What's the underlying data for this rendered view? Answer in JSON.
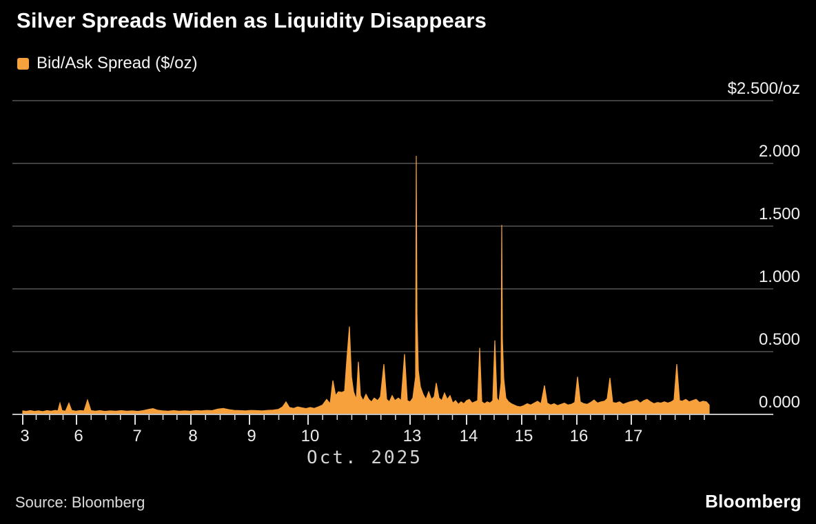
{
  "title": "Silver Spreads Widen as Liquidity Disappears",
  "legend": {
    "label": "Bid/Ask Spread ($/oz)"
  },
  "source": "Source: Bloomberg",
  "brand": "Bloomberg",
  "colors": {
    "background": "#000000",
    "accent": "#F6A13B",
    "gridline": "#565656",
    "baseline": "#C2C2C2",
    "tick": "#E0E0E0",
    "y_label": "#F0F0F0",
    "x_label": "#EDEDED",
    "caption": "#D6D6D6"
  },
  "chart_data": {
    "type": "area",
    "title": "Silver Spreads Widen as Liquidity Disappears",
    "series_name": "Bid/Ask Spread ($/oz)",
    "xlabel": "Oct. 2025",
    "ylabel": "$/oz",
    "ylim": [
      0,
      2.5
    ],
    "grid": "horizontal",
    "legend_position": "top-left",
    "y_axis": {
      "side": "right",
      "ticks": [
        {
          "label": "$2.500/oz",
          "value": 2.5
        },
        {
          "label": "2.000",
          "value": 2.0
        },
        {
          "label": "1.500",
          "value": 1.5
        },
        {
          "label": "1.000",
          "value": 1.0
        },
        {
          "label": "0.500",
          "value": 0.5
        },
        {
          "label": "0.000",
          "value": 0.0
        }
      ]
    },
    "x_axis": {
      "caption": "Oct. 2025",
      "unit_note": "x = position along time axis (Oct 3 - Oct 17, 2025, non-trading gaps compressed)",
      "ticks": [
        {
          "label": "3",
          "pos": 13
        },
        {
          "label": "6",
          "pos": 91
        },
        {
          "label": "7",
          "pos": 176
        },
        {
          "label": "8",
          "pos": 257
        },
        {
          "label": "9",
          "pos": 342
        },
        {
          "label": "10",
          "pos": 427
        },
        {
          "label": "13",
          "pos": 575
        },
        {
          "label": "14",
          "pos": 657
        },
        {
          "label": "15",
          "pos": 737
        },
        {
          "label": "16",
          "pos": 817
        },
        {
          "label": "17",
          "pos": 896
        }
      ],
      "minor_tick_spacing": 21.2,
      "data_end": 1009
    },
    "points": [
      [
        13,
        0.028
      ],
      [
        18,
        0.024
      ],
      [
        24,
        0.03
      ],
      [
        30,
        0.024
      ],
      [
        36,
        0.028
      ],
      [
        42,
        0.022
      ],
      [
        48,
        0.03
      ],
      [
        54,
        0.026
      ],
      [
        60,
        0.032
      ],
      [
        64,
        0.028
      ],
      [
        67,
        0.09
      ],
      [
        70,
        0.03
      ],
      [
        75,
        0.026
      ],
      [
        80,
        0.09
      ],
      [
        84,
        0.032
      ],
      [
        90,
        0.026
      ],
      [
        96,
        0.03
      ],
      [
        102,
        0.028
      ],
      [
        107,
        0.115
      ],
      [
        112,
        0.03
      ],
      [
        118,
        0.026
      ],
      [
        125,
        0.03
      ],
      [
        132,
        0.024
      ],
      [
        140,
        0.028
      ],
      [
        148,
        0.026
      ],
      [
        156,
        0.03
      ],
      [
        164,
        0.026
      ],
      [
        172,
        0.028
      ],
      [
        180,
        0.024
      ],
      [
        188,
        0.03
      ],
      [
        196,
        0.04
      ],
      [
        202,
        0.046
      ],
      [
        208,
        0.034
      ],
      [
        216,
        0.028
      ],
      [
        224,
        0.026
      ],
      [
        232,
        0.03
      ],
      [
        240,
        0.026
      ],
      [
        248,
        0.028
      ],
      [
        256,
        0.026
      ],
      [
        264,
        0.03
      ],
      [
        272,
        0.028
      ],
      [
        280,
        0.032
      ],
      [
        288,
        0.03
      ],
      [
        296,
        0.042
      ],
      [
        304,
        0.048
      ],
      [
        312,
        0.038
      ],
      [
        320,
        0.032
      ],
      [
        328,
        0.03
      ],
      [
        336,
        0.028
      ],
      [
        344,
        0.032
      ],
      [
        352,
        0.03
      ],
      [
        360,
        0.028
      ],
      [
        368,
        0.032
      ],
      [
        376,
        0.034
      ],
      [
        384,
        0.04
      ],
      [
        390,
        0.06
      ],
      [
        395,
        0.1
      ],
      [
        400,
        0.055
      ],
      [
        406,
        0.048
      ],
      [
        412,
        0.06
      ],
      [
        418,
        0.052
      ],
      [
        424,
        0.046
      ],
      [
        430,
        0.055
      ],
      [
        436,
        0.048
      ],
      [
        442,
        0.06
      ],
      [
        448,
        0.075
      ],
      [
        454,
        0.12
      ],
      [
        459,
        0.085
      ],
      [
        463,
        0.27
      ],
      [
        467,
        0.15
      ],
      [
        471,
        0.18
      ],
      [
        476,
        0.175
      ],
      [
        480,
        0.185
      ],
      [
        483,
        0.42
      ],
      [
        487,
        0.7
      ],
      [
        490,
        0.3
      ],
      [
        493,
        0.18
      ],
      [
        497,
        0.12
      ],
      [
        500,
        0.42
      ],
      [
        503,
        0.15
      ],
      [
        507,
        0.11
      ],
      [
        511,
        0.16
      ],
      [
        515,
        0.12
      ],
      [
        519,
        0.1
      ],
      [
        523,
        0.13
      ],
      [
        528,
        0.11
      ],
      [
        532,
        0.14
      ],
      [
        537,
        0.4
      ],
      [
        541,
        0.12
      ],
      [
        545,
        0.1
      ],
      [
        549,
        0.15
      ],
      [
        553,
        0.11
      ],
      [
        558,
        0.13
      ],
      [
        562,
        0.11
      ],
      [
        567,
        0.48
      ],
      [
        571,
        0.11
      ],
      [
        575,
        0.1
      ],
      [
        579,
        0.13
      ],
      [
        583,
        0.3
      ],
      [
        584,
        2.06
      ],
      [
        585,
        0.8
      ],
      [
        587,
        0.35
      ],
      [
        590,
        0.22
      ],
      [
        594,
        0.16
      ],
      [
        598,
        0.12
      ],
      [
        602,
        0.18
      ],
      [
        606,
        0.12
      ],
      [
        610,
        0.14
      ],
      [
        613,
        0.25
      ],
      [
        617,
        0.13
      ],
      [
        621,
        0.11
      ],
      [
        625,
        0.17
      ],
      [
        629,
        0.12
      ],
      [
        633,
        0.15
      ],
      [
        637,
        0.09
      ],
      [
        641,
        0.11
      ],
      [
        645,
        0.08
      ],
      [
        649,
        0.1
      ],
      [
        653,
        0.085
      ],
      [
        657,
        0.11
      ],
      [
        661,
        0.12
      ],
      [
        665,
        0.09
      ],
      [
        669,
        0.1
      ],
      [
        673,
        0.11
      ],
      [
        676,
        0.53
      ],
      [
        679,
        0.1
      ],
      [
        683,
        0.085
      ],
      [
        687,
        0.1
      ],
      [
        691,
        0.09
      ],
      [
        695,
        0.11
      ],
      [
        698,
        0.59
      ],
      [
        701,
        0.13
      ],
      [
        704,
        0.1
      ],
      [
        707,
        0.25
      ],
      [
        708,
        1.51
      ],
      [
        709,
        0.6
      ],
      [
        711,
        0.28
      ],
      [
        714,
        0.13
      ],
      [
        718,
        0.1
      ],
      [
        722,
        0.085
      ],
      [
        726,
        0.075
      ],
      [
        730,
        0.065
      ],
      [
        735,
        0.06
      ],
      [
        740,
        0.07
      ],
      [
        745,
        0.085
      ],
      [
        750,
        0.075
      ],
      [
        755,
        0.09
      ],
      [
        760,
        0.105
      ],
      [
        765,
        0.085
      ],
      [
        770,
        0.23
      ],
      [
        774,
        0.09
      ],
      [
        779,
        0.075
      ],
      [
        784,
        0.085
      ],
      [
        789,
        0.07
      ],
      [
        794,
        0.08
      ],
      [
        799,
        0.09
      ],
      [
        804,
        0.075
      ],
      [
        809,
        0.08
      ],
      [
        814,
        0.095
      ],
      [
        818,
        0.3
      ],
      [
        822,
        0.1
      ],
      [
        827,
        0.085
      ],
      [
        832,
        0.08
      ],
      [
        837,
        0.095
      ],
      [
        842,
        0.115
      ],
      [
        847,
        0.09
      ],
      [
        852,
        0.1
      ],
      [
        857,
        0.105
      ],
      [
        861,
        0.125
      ],
      [
        865,
        0.29
      ],
      [
        869,
        0.095
      ],
      [
        874,
        0.09
      ],
      [
        879,
        0.1
      ],
      [
        884,
        0.08
      ],
      [
        889,
        0.09
      ],
      [
        894,
        0.1
      ],
      [
        899,
        0.105
      ],
      [
        904,
        0.115
      ],
      [
        909,
        0.09
      ],
      [
        914,
        0.11
      ],
      [
        919,
        0.12
      ],
      [
        924,
        0.1
      ],
      [
        929,
        0.085
      ],
      [
        934,
        0.095
      ],
      [
        939,
        0.09
      ],
      [
        944,
        0.1
      ],
      [
        949,
        0.09
      ],
      [
        954,
        0.1
      ],
      [
        958,
        0.115
      ],
      [
        962,
        0.4
      ],
      [
        966,
        0.11
      ],
      [
        970,
        0.105
      ],
      [
        975,
        0.12
      ],
      [
        980,
        0.1
      ],
      [
        985,
        0.11
      ],
      [
        990,
        0.12
      ],
      [
        995,
        0.095
      ],
      [
        1000,
        0.105
      ],
      [
        1005,
        0.1
      ],
      [
        1009,
        0.075
      ]
    ]
  }
}
